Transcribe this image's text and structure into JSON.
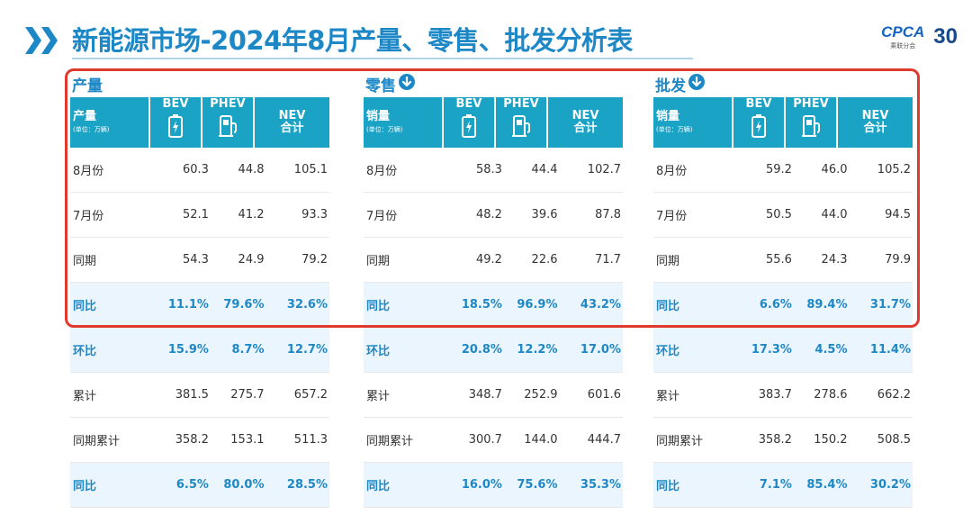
{
  "header": {
    "title": "新能源市场-2024年8月产量、零售、批发分析表",
    "logo_text": "CPCA",
    "logo_sub": "乘联分会",
    "anniversary": "30"
  },
  "colors": {
    "accent": "#1e88c7",
    "header_bg": "#1ba3c6",
    "highlight": "#e03a2f"
  },
  "panels": [
    {
      "title": "产量",
      "arrow": false,
      "header": {
        "label": "产量",
        "unit": "(单位：万辆)",
        "bev": "BEV",
        "phev": "PHEV",
        "nev": "NEV",
        "nev2": "合计"
      },
      "rows": [
        {
          "label": "8月份",
          "bev": "60.3",
          "phev": "44.8",
          "nev": "105.1",
          "hl": false
        },
        {
          "label": "7月份",
          "bev": "52.1",
          "phev": "41.2",
          "nev": "93.3",
          "hl": false
        },
        {
          "label": "同期",
          "bev": "54.3",
          "phev": "24.9",
          "nev": "79.2",
          "hl": false
        },
        {
          "label": "同比",
          "bev": "11.1%",
          "phev": "79.6%",
          "nev": "32.6%",
          "hl": true
        },
        {
          "label": "环比",
          "bev": "15.9%",
          "phev": "8.7%",
          "nev": "12.7%",
          "hl": true
        },
        {
          "label": "累计",
          "bev": "381.5",
          "phev": "275.7",
          "nev": "657.2",
          "hl": false
        },
        {
          "label": "同期累计",
          "bev": "358.2",
          "phev": "153.1",
          "nev": "511.3",
          "hl": false
        },
        {
          "label": "同比",
          "bev": "6.5%",
          "phev": "80.0%",
          "nev": "28.5%",
          "hl": true
        }
      ]
    },
    {
      "title": "零售",
      "arrow": true,
      "header": {
        "label": "销量",
        "unit": "(单位：万辆)",
        "bev": "BEV",
        "phev": "PHEV",
        "nev": "NEV",
        "nev2": "合计"
      },
      "rows": [
        {
          "label": "8月份",
          "bev": "58.3",
          "phev": "44.4",
          "nev": "102.7",
          "hl": false
        },
        {
          "label": "7月份",
          "bev": "48.2",
          "phev": "39.6",
          "nev": "87.8",
          "hl": false
        },
        {
          "label": "同期",
          "bev": "49.2",
          "phev": "22.6",
          "nev": "71.7",
          "hl": false
        },
        {
          "label": "同比",
          "bev": "18.5%",
          "phev": "96.9%",
          "nev": "43.2%",
          "hl": true
        },
        {
          "label": "环比",
          "bev": "20.8%",
          "phev": "12.2%",
          "nev": "17.0%",
          "hl": true
        },
        {
          "label": "累计",
          "bev": "348.7",
          "phev": "252.9",
          "nev": "601.6",
          "hl": false
        },
        {
          "label": "同期累计",
          "bev": "300.7",
          "phev": "144.0",
          "nev": "444.7",
          "hl": false
        },
        {
          "label": "同比",
          "bev": "16.0%",
          "phev": "75.6%",
          "nev": "35.3%",
          "hl": true
        }
      ]
    },
    {
      "title": "批发",
      "arrow": true,
      "header": {
        "label": "销量",
        "unit": "(单位：万辆)",
        "bev": "BEV",
        "phev": "PHEV",
        "nev": "NEV",
        "nev2": "合计"
      },
      "rows": [
        {
          "label": "8月份",
          "bev": "59.2",
          "phev": "46.0",
          "nev": "105.2",
          "hl": false
        },
        {
          "label": "7月份",
          "bev": "50.5",
          "phev": "44.0",
          "nev": "94.5",
          "hl": false
        },
        {
          "label": "同期",
          "bev": "55.6",
          "phev": "24.3",
          "nev": "79.9",
          "hl": false
        },
        {
          "label": "同比",
          "bev": "6.6%",
          "phev": "89.4%",
          "nev": "31.7%",
          "hl": true
        },
        {
          "label": "环比",
          "bev": "17.3%",
          "phev": "4.5%",
          "nev": "11.4%",
          "hl": true
        },
        {
          "label": "累计",
          "bev": "383.7",
          "phev": "278.6",
          "nev": "662.2",
          "hl": false
        },
        {
          "label": "同期累计",
          "bev": "358.2",
          "phev": "150.2",
          "nev": "508.5",
          "hl": false
        },
        {
          "label": "同比",
          "bev": "7.1%",
          "phev": "85.4%",
          "nev": "30.2%",
          "hl": true
        }
      ]
    }
  ]
}
